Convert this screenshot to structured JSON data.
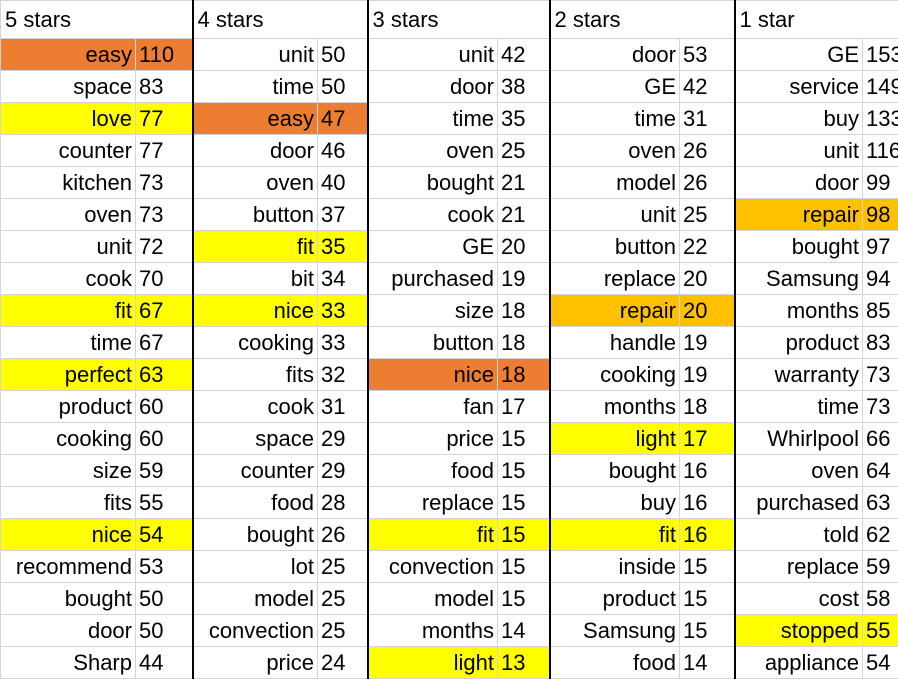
{
  "colors": {
    "yellow": "#ffff00",
    "orange": "#ed7d31",
    "amber": "#ffc000",
    "gridline": "#d4d4d4",
    "group_border": "#000000"
  },
  "groups": [
    {
      "header": "5 stars",
      "rows": [
        {
          "word": "easy",
          "count": "110",
          "hl": "orange"
        },
        {
          "word": "space",
          "count": "83"
        },
        {
          "word": "love",
          "count": "77",
          "hl": "yellow"
        },
        {
          "word": "counter",
          "count": "77"
        },
        {
          "word": "kitchen",
          "count": "73"
        },
        {
          "word": "oven",
          "count": "73"
        },
        {
          "word": "unit",
          "count": "72"
        },
        {
          "word": "cook",
          "count": "70"
        },
        {
          "word": "fit",
          "count": "67",
          "hl": "yellow"
        },
        {
          "word": "time",
          "count": "67"
        },
        {
          "word": "perfect",
          "count": "63",
          "hl": "yellow"
        },
        {
          "word": "product",
          "count": "60"
        },
        {
          "word": "cooking",
          "count": "60"
        },
        {
          "word": "size",
          "count": "59"
        },
        {
          "word": "fits",
          "count": "55"
        },
        {
          "word": "nice",
          "count": "54",
          "hl": "yellow"
        },
        {
          "word": "recommend",
          "count": "53"
        },
        {
          "word": "bought",
          "count": "50"
        },
        {
          "word": "door",
          "count": "50"
        },
        {
          "word": "Sharp",
          "count": "44"
        }
      ]
    },
    {
      "header": "4 stars",
      "rows": [
        {
          "word": "unit",
          "count": "50"
        },
        {
          "word": "time",
          "count": "50"
        },
        {
          "word": "easy",
          "count": "47",
          "hl": "orange"
        },
        {
          "word": "door",
          "count": "46"
        },
        {
          "word": "oven",
          "count": "40"
        },
        {
          "word": "button",
          "count": "37"
        },
        {
          "word": "fit",
          "count": "35",
          "hl": "yellow"
        },
        {
          "word": "bit",
          "count": "34"
        },
        {
          "word": "nice",
          "count": "33",
          "hl": "yellow"
        },
        {
          "word": "cooking",
          "count": "33"
        },
        {
          "word": "fits",
          "count": "32"
        },
        {
          "word": "cook",
          "count": "31"
        },
        {
          "word": "space",
          "count": "29"
        },
        {
          "word": "counter",
          "count": "29"
        },
        {
          "word": "food",
          "count": "28"
        },
        {
          "word": "bought",
          "count": "26"
        },
        {
          "word": "lot",
          "count": "25"
        },
        {
          "word": "model",
          "count": "25"
        },
        {
          "word": "convection",
          "count": "25"
        },
        {
          "word": "price",
          "count": "24"
        }
      ]
    },
    {
      "header": "3 stars",
      "rows": [
        {
          "word": "unit",
          "count": "42"
        },
        {
          "word": "door",
          "count": "38"
        },
        {
          "word": "time",
          "count": "35"
        },
        {
          "word": "oven",
          "count": "25"
        },
        {
          "word": "bought",
          "count": "21"
        },
        {
          "word": "cook",
          "count": "21"
        },
        {
          "word": "GE",
          "count": "20"
        },
        {
          "word": "purchased",
          "count": "19"
        },
        {
          "word": "size",
          "count": "18"
        },
        {
          "word": "button",
          "count": "18"
        },
        {
          "word": "nice",
          "count": "18",
          "hl": "orange"
        },
        {
          "word": "fan",
          "count": "17"
        },
        {
          "word": "price",
          "count": "15"
        },
        {
          "word": "food",
          "count": "15"
        },
        {
          "word": "replace",
          "count": "15"
        },
        {
          "word": "fit",
          "count": "15",
          "hl": "yellow"
        },
        {
          "word": "convection",
          "count": "15"
        },
        {
          "word": "model",
          "count": "15"
        },
        {
          "word": "months",
          "count": "14"
        },
        {
          "word": "light",
          "count": "13",
          "hl": "yellow"
        }
      ]
    },
    {
      "header": "2 stars",
      "rows": [
        {
          "word": "door",
          "count": "53"
        },
        {
          "word": "GE",
          "count": "42"
        },
        {
          "word": "time",
          "count": "31"
        },
        {
          "word": "oven",
          "count": "26"
        },
        {
          "word": "model",
          "count": "26"
        },
        {
          "word": "unit",
          "count": "25"
        },
        {
          "word": "button",
          "count": "22"
        },
        {
          "word": "replace",
          "count": "20"
        },
        {
          "word": "repair",
          "count": "20",
          "hl": "amber"
        },
        {
          "word": "handle",
          "count": "19"
        },
        {
          "word": "cooking",
          "count": "19"
        },
        {
          "word": "months",
          "count": "18"
        },
        {
          "word": "light",
          "count": "17",
          "hl": "yellow"
        },
        {
          "word": "bought",
          "count": "16"
        },
        {
          "word": "buy",
          "count": "16"
        },
        {
          "word": "fit",
          "count": "16",
          "hl": "yellow"
        },
        {
          "word": "inside",
          "count": "15"
        },
        {
          "word": "product",
          "count": "15"
        },
        {
          "word": "Samsung",
          "count": "15"
        },
        {
          "word": "food",
          "count": "14"
        }
      ]
    },
    {
      "header": "1 star",
      "rows": [
        {
          "word": "GE",
          "count": "153"
        },
        {
          "word": "service",
          "count": "149"
        },
        {
          "word": "buy",
          "count": "133"
        },
        {
          "word": "unit",
          "count": "116"
        },
        {
          "word": "door",
          "count": "99"
        },
        {
          "word": "repair",
          "count": "98",
          "hl": "amber"
        },
        {
          "word": "bought",
          "count": "97"
        },
        {
          "word": "Samsung",
          "count": "94"
        },
        {
          "word": "months",
          "count": "85"
        },
        {
          "word": "product",
          "count": "83"
        },
        {
          "word": "warranty",
          "count": "73"
        },
        {
          "word": "time",
          "count": "73"
        },
        {
          "word": "Whirlpool",
          "count": "66"
        },
        {
          "word": "oven",
          "count": "64"
        },
        {
          "word": "purchased",
          "count": "63"
        },
        {
          "word": "told",
          "count": "62"
        },
        {
          "word": "replace",
          "count": "59"
        },
        {
          "word": "cost",
          "count": "58"
        },
        {
          "word": "stopped",
          "count": "55",
          "hl": "yellow"
        },
        {
          "word": "appliance",
          "count": "54"
        }
      ]
    }
  ]
}
